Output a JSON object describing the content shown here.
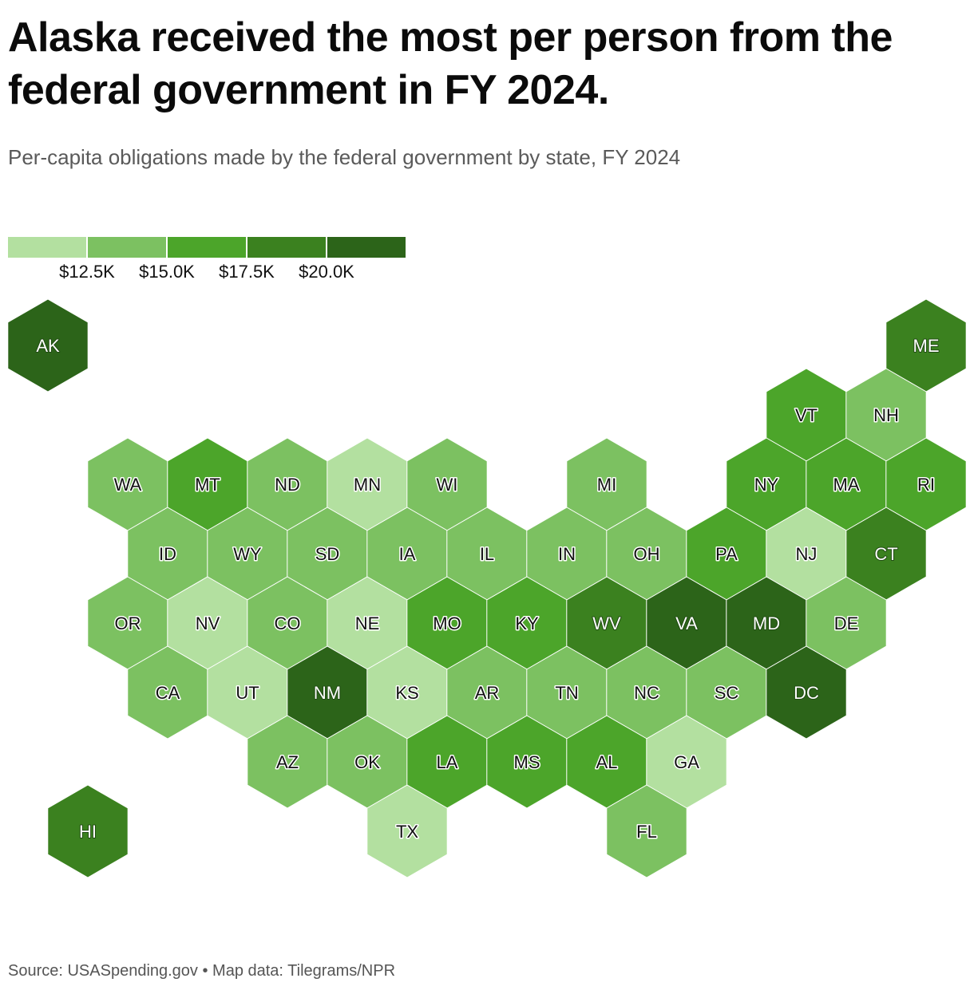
{
  "title": "Alaska received the most per person from the federal government in FY 2024.",
  "subtitle": "Per-capita obligations made by the federal government by state, FY 2024",
  "source": "Source: USASpending.gov • Map data: Tilegrams/NPR",
  "legend": {
    "colors": [
      "#b3e0a0",
      "#7cc161",
      "#4ca52a",
      "#3b811f",
      "#2c6419"
    ],
    "ticks": [
      "$12.5K",
      "$15.0K",
      "$17.5K",
      "$20.0K"
    ]
  },
  "chart_data": {
    "type": "hex tile map",
    "legend_breaks": [
      12500,
      15000,
      17500,
      20000
    ],
    "bins": [
      {
        "bin": 1,
        "range": "< $12.5K",
        "color": "#b3e0a0"
      },
      {
        "bin": 2,
        "range": "$12.5K – $15.0K",
        "color": "#7cc161"
      },
      {
        "bin": 3,
        "range": "$15.0K – $17.5K",
        "color": "#4ca52a"
      },
      {
        "bin": 4,
        "range": "$17.5K – $20.0K",
        "color": "#3b811f"
      },
      {
        "bin": 5,
        "range": "> $20.0K",
        "color": "#2c6419"
      }
    ],
    "states": [
      {
        "abbr": "AK",
        "bin": 5
      },
      {
        "abbr": "ME",
        "bin": 4
      },
      {
        "abbr": "VT",
        "bin": 3
      },
      {
        "abbr": "NH",
        "bin": 2
      },
      {
        "abbr": "WA",
        "bin": 2
      },
      {
        "abbr": "MT",
        "bin": 3
      },
      {
        "abbr": "ND",
        "bin": 2
      },
      {
        "abbr": "MN",
        "bin": 1
      },
      {
        "abbr": "WI",
        "bin": 2
      },
      {
        "abbr": "MI",
        "bin": 2
      },
      {
        "abbr": "NY",
        "bin": 3
      },
      {
        "abbr": "MA",
        "bin": 3
      },
      {
        "abbr": "RI",
        "bin": 3
      },
      {
        "abbr": "ID",
        "bin": 2
      },
      {
        "abbr": "WY",
        "bin": 2
      },
      {
        "abbr": "SD",
        "bin": 2
      },
      {
        "abbr": "IA",
        "bin": 2
      },
      {
        "abbr": "IL",
        "bin": 2
      },
      {
        "abbr": "IN",
        "bin": 2
      },
      {
        "abbr": "OH",
        "bin": 2
      },
      {
        "abbr": "PA",
        "bin": 3
      },
      {
        "abbr": "NJ",
        "bin": 1
      },
      {
        "abbr": "CT",
        "bin": 4
      },
      {
        "abbr": "OR",
        "bin": 2
      },
      {
        "abbr": "NV",
        "bin": 1
      },
      {
        "abbr": "CO",
        "bin": 2
      },
      {
        "abbr": "NE",
        "bin": 1
      },
      {
        "abbr": "MO",
        "bin": 3
      },
      {
        "abbr": "KY",
        "bin": 3
      },
      {
        "abbr": "WV",
        "bin": 4
      },
      {
        "abbr": "VA",
        "bin": 5
      },
      {
        "abbr": "MD",
        "bin": 5
      },
      {
        "abbr": "DE",
        "bin": 2
      },
      {
        "abbr": "CA",
        "bin": 2
      },
      {
        "abbr": "UT",
        "bin": 1
      },
      {
        "abbr": "NM",
        "bin": 5
      },
      {
        "abbr": "KS",
        "bin": 1
      },
      {
        "abbr": "AR",
        "bin": 2
      },
      {
        "abbr": "TN",
        "bin": 2
      },
      {
        "abbr": "NC",
        "bin": 2
      },
      {
        "abbr": "SC",
        "bin": 2
      },
      {
        "abbr": "DC",
        "bin": 5
      },
      {
        "abbr": "AZ",
        "bin": 2
      },
      {
        "abbr": "OK",
        "bin": 2
      },
      {
        "abbr": "LA",
        "bin": 3
      },
      {
        "abbr": "MS",
        "bin": 3
      },
      {
        "abbr": "AL",
        "bin": 3
      },
      {
        "abbr": "GA",
        "bin": 1
      },
      {
        "abbr": "HI",
        "bin": 4
      },
      {
        "abbr": "TX",
        "bin": 1
      },
      {
        "abbr": "FL",
        "bin": 2
      }
    ]
  }
}
